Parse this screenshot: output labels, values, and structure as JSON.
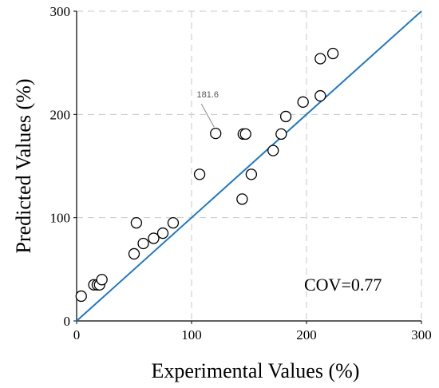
{
  "chart_data": {
    "type": "scatter",
    "xlabel": "Experimental Values (%)",
    "ylabel": "Predicted Values (%)",
    "xlim": [
      0,
      300
    ],
    "ylim": [
      0,
      300
    ],
    "xticks": [
      "0",
      "100",
      "200",
      "300"
    ],
    "yticks": [
      "0",
      "100",
      "200",
      "300"
    ],
    "grid": true,
    "points": [
      {
        "x": 4,
        "y": 24
      },
      {
        "x": 15,
        "y": 35
      },
      {
        "x": 18,
        "y": 35
      },
      {
        "x": 20,
        "y": 35
      },
      {
        "x": 22,
        "y": 40
      },
      {
        "x": 50,
        "y": 65
      },
      {
        "x": 52,
        "y": 95
      },
      {
        "x": 58,
        "y": 75
      },
      {
        "x": 67,
        "y": 80
      },
      {
        "x": 75,
        "y": 85
      },
      {
        "x": 84,
        "y": 95
      },
      {
        "x": 107,
        "y": 142
      },
      {
        "x": 121,
        "y": 181.6
      },
      {
        "x": 144,
        "y": 118
      },
      {
        "x": 145,
        "y": 181
      },
      {
        "x": 147,
        "y": 181
      },
      {
        "x": 152,
        "y": 142
      },
      {
        "x": 171,
        "y": 165
      },
      {
        "x": 178,
        "y": 181
      },
      {
        "x": 182,
        "y": 198
      },
      {
        "x": 197,
        "y": 212
      },
      {
        "x": 212,
        "y": 218
      },
      {
        "x": 212,
        "y": 254
      },
      {
        "x": 223,
        "y": 259
      }
    ],
    "reference_line": {
      "x": [
        0,
        300
      ],
      "y": [
        0,
        300
      ],
      "color": "#1F77C4"
    },
    "callout": {
      "text": "181.6",
      "x": 121,
      "y": 181.6
    },
    "annotation": "COV=0.77",
    "marker_color": "#000000"
  }
}
